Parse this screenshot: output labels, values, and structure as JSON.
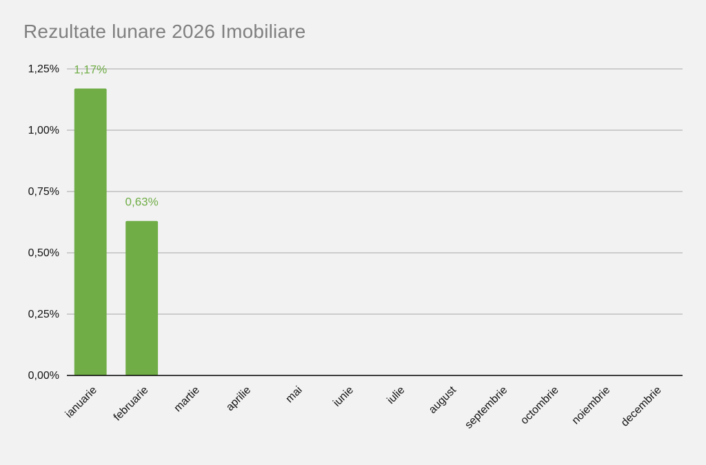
{
  "colors": {
    "background": "#f2f2f2",
    "bar": "#70ad47",
    "data_label": "#70ad47",
    "gridline": "#bfbfbf",
    "axis": "#000000",
    "title": "#7f7f7f"
  },
  "chart_data": {
    "type": "bar",
    "title": "Rezultate lunare 2026 Imobiliare",
    "xlabel": "",
    "ylabel": "",
    "categories": [
      "ianuarie",
      "februarie",
      "martie",
      "aprilie",
      "mai",
      "iunie",
      "iulie",
      "august",
      "septembrie",
      "octombrie",
      "noiembrie",
      "decembrie"
    ],
    "values": [
      1.17,
      0.63,
      null,
      null,
      null,
      null,
      null,
      null,
      null,
      null,
      null,
      null
    ],
    "data_labels": [
      "1,17%",
      "0,63%",
      "",
      "",
      "",
      "",
      "",
      "",
      "",
      "",
      "",
      ""
    ],
    "ylim": [
      0,
      1.25
    ],
    "yticks": [
      0,
      0.25,
      0.5,
      0.75,
      1.0,
      1.25
    ],
    "ytick_labels": [
      "0,00%",
      "0,25%",
      "0,50%",
      "0,75%",
      "1,00%",
      "1,25%"
    ],
    "grid": true,
    "legend": "none"
  }
}
